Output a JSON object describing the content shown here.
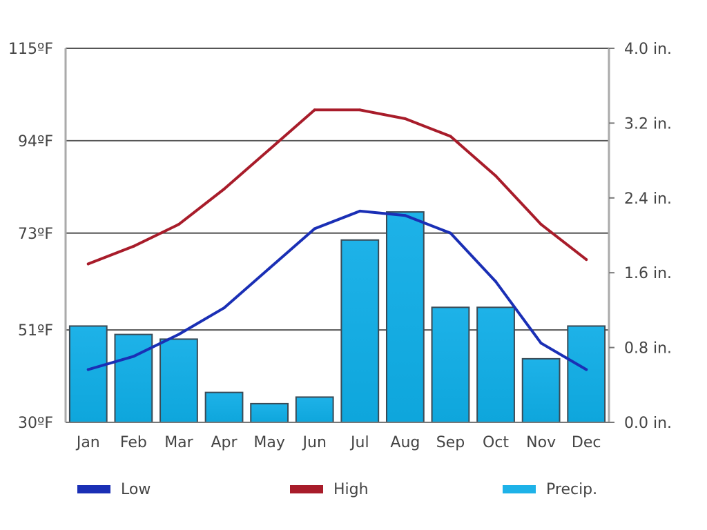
{
  "chart_data": {
    "type": "bar",
    "categories": [
      "Jan",
      "Feb",
      "Mar",
      "Apr",
      "May",
      "Jun",
      "Jul",
      "Aug",
      "Sep",
      "Oct",
      "Nov",
      "Dec"
    ],
    "series": [
      {
        "name": "Precip.",
        "kind": "bar",
        "axis": "right",
        "color": "#1eb2e8",
        "unit": "in.",
        "values": [
          1.03,
          0.94,
          0.89,
          0.32,
          0.2,
          0.27,
          1.95,
          2.25,
          1.23,
          1.23,
          0.68,
          1.03
        ]
      },
      {
        "name": "High",
        "kind": "line",
        "axis": "left",
        "color": "#a81c2a",
        "unit": "°F",
        "values": [
          66,
          70,
          75,
          83,
          92,
          101,
          101,
          99,
          95,
          86,
          75,
          67
        ]
      },
      {
        "name": "Low",
        "kind": "line",
        "axis": "left",
        "color": "#1a2fb5",
        "unit": "°F",
        "values": [
          42,
          45,
          50,
          56,
          65,
          74,
          78,
          77,
          73,
          62,
          48,
          42
        ]
      }
    ],
    "y_left": {
      "ylim": [
        30,
        115
      ],
      "ticks": [
        30,
        51,
        73,
        94,
        115
      ],
      "tick_labels": [
        "30ºF",
        "51ºF",
        "73ºF",
        "94ºF",
        "115ºF"
      ]
    },
    "y_right": {
      "ylim": [
        0,
        4
      ],
      "ticks": [
        0,
        0.8,
        1.6,
        2.4,
        3.2,
        4.0
      ],
      "tick_labels": [
        "0.0 in.",
        "0.8 in.",
        "1.6 in.",
        "2.4 in.",
        "3.2 in.",
        "4.0 in."
      ]
    },
    "grid": true,
    "legend": {
      "placement": "bottom",
      "items": [
        {
          "label": "Low",
          "color": "#1a2fb5"
        },
        {
          "label": "High",
          "color": "#a81c2a"
        },
        {
          "label": "Precip.",
          "color": "#1eb2e8"
        }
      ]
    }
  }
}
